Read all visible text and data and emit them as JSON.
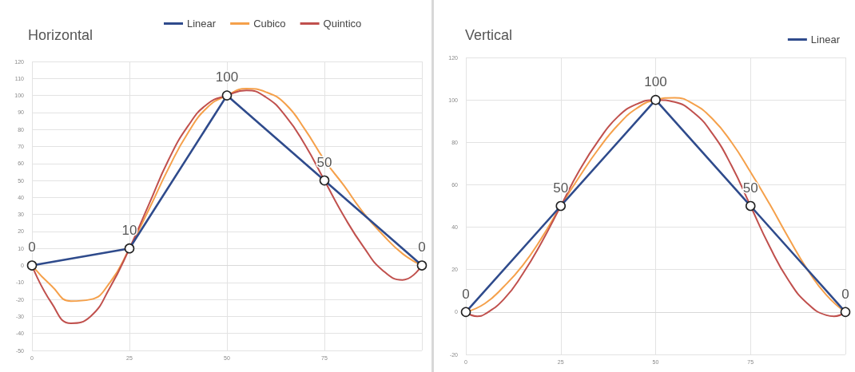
{
  "chart_data": [
    {
      "type": "line",
      "title": "Horizontal",
      "x": [
        0,
        25,
        50,
        75,
        100
      ],
      "xlim": [
        0,
        100
      ],
      "xticks": [
        0,
        25,
        50,
        75,
        {
          "value": 100,
          "label": null
        }
      ],
      "ylim": [
        -50,
        120
      ],
      "yticks": [
        -50,
        -40,
        -30,
        -20,
        -10,
        0,
        10,
        20,
        30,
        40,
        50,
        60,
        70,
        80,
        90,
        100,
        110,
        120
      ],
      "grid": true,
      "legend": "top",
      "series": [
        {
          "name": "Linear",
          "color": "#2f4b8c",
          "marker": "circle",
          "values": [
            0,
            10,
            100,
            50,
            0
          ],
          "value_labels": [
            "0",
            "10",
            "100",
            "50",
            "0"
          ]
        },
        {
          "name": "Cubico",
          "color": "#f5a04a",
          "marker": "none",
          "x": [
            0,
            5,
            10,
            15,
            20,
            25,
            30,
            35,
            40,
            45,
            50,
            55,
            60,
            65,
            70,
            75,
            80,
            85,
            90,
            95,
            100
          ],
          "values": [
            0,
            -12,
            -21,
            -20,
            -10,
            10,
            33,
            57,
            78,
            93,
            100,
            104,
            102,
            95,
            80,
            62,
            47,
            31,
            18,
            7,
            0
          ]
        },
        {
          "name": "Quintico",
          "color": "#c0504d",
          "marker": "none",
          "x": [
            0,
            5,
            10,
            15,
            20,
            25,
            30,
            35,
            40,
            45,
            50,
            55,
            60,
            65,
            70,
            75,
            80,
            85,
            90,
            95,
            100
          ],
          "values": [
            0,
            -22,
            -34,
            -30,
            -13,
            10,
            36,
            62,
            82,
            95,
            100,
            103,
            99,
            88,
            71,
            50,
            29,
            11,
            -3,
            -8.5,
            0
          ]
        }
      ]
    },
    {
      "type": "line",
      "title": "Vertical",
      "x": [
        0,
        25,
        50,
        75,
        100
      ],
      "xlim": [
        0,
        100
      ],
      "xticks": [
        0,
        25,
        50,
        75,
        {
          "value": 100,
          "label": null
        }
      ],
      "ylim": [
        -20,
        120
      ],
      "yticks": [
        -20,
        0,
        20,
        40,
        60,
        80,
        100,
        120
      ],
      "grid": true,
      "legend": "top right",
      "series": [
        {
          "name": "Linear",
          "color": "#2f4b8c",
          "marker": "circle",
          "values": [
            0,
            50,
            100,
            50,
            0
          ],
          "value_labels": [
            "0",
            "50",
            "100",
            "50",
            "0"
          ]
        },
        {
          "color": "#f5a04a",
          "marker": "none",
          "x": [
            0,
            5,
            10,
            15,
            20,
            25,
            30,
            35,
            40,
            45,
            50,
            55,
            60,
            65,
            70,
            75,
            80,
            85,
            90,
            95,
            100
          ],
          "values": [
            0,
            4,
            12,
            22,
            35,
            50,
            64,
            77,
            88,
            96,
            100,
            101,
            98,
            91,
            80,
            66,
            51,
            35,
            20,
            8,
            0
          ]
        },
        {
          "color": "#c0504d",
          "marker": "none",
          "x": [
            0,
            3,
            5,
            10,
            15,
            20,
            25,
            30,
            35,
            40,
            45,
            50,
            55,
            60,
            65,
            70,
            75,
            80,
            85,
            90,
            95,
            97,
            100
          ],
          "values": [
            0,
            -2,
            -1,
            6,
            18,
            33,
            50,
            67,
            81,
            92,
            98,
            100,
            99,
            94,
            84,
            69,
            50,
            31,
            15,
            4,
            -1.5,
            -2,
            0
          ]
        }
      ]
    }
  ]
}
